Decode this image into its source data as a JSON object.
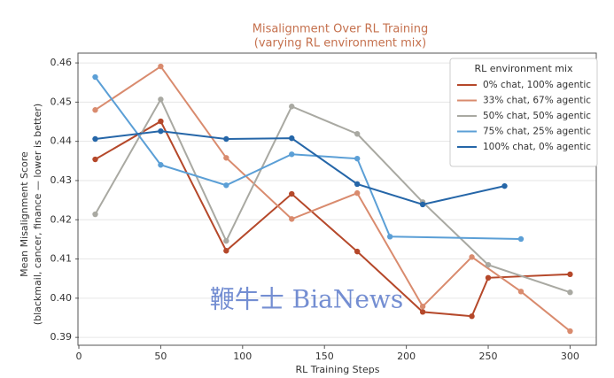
{
  "chart_data": {
    "type": "line",
    "title": [
      "Misalignment Over RL Training",
      "(varying RL environment mix)"
    ],
    "xlabel": "RL Training Steps",
    "ylabel": [
      "Mean Misalignment Score",
      "(blackmail, cancer, finance — lower is better)"
    ],
    "legend_title": "RL environment mix",
    "legend": "upper right",
    "grid": true,
    "xlim": [
      0,
      316
    ],
    "xticks": [
      0,
      50,
      100,
      150,
      200,
      250,
      300
    ],
    "ylim": [
      0.388,
      0.4625
    ],
    "yticks": [
      {
        "value": 0.39,
        "label": "0.39"
      },
      {
        "value": 0.4,
        "label": "0.40"
      },
      0.41,
      0.42,
      0.43,
      0.44,
      0.45,
      0.46
    ],
    "series": [
      {
        "name": "0% chat, 100% agentic",
        "color": "#b5482a",
        "x": [
          10,
          50,
          90,
          130,
          170,
          210,
          240,
          250,
          300
        ],
        "values": [
          0.4354,
          0.4451,
          0.4121,
          0.4266,
          0.4119,
          0.3965,
          0.3954,
          0.4052,
          0.4061
        ]
      },
      {
        "name": "33% chat, 67% agentic",
        "color": "#d98b6e",
        "x": [
          10,
          50,
          90,
          130,
          170,
          210,
          240,
          270,
          300
        ],
        "values": [
          0.448,
          0.4591,
          0.4358,
          0.4202,
          0.4268,
          0.3979,
          0.4105,
          0.4017,
          0.3916
        ]
      },
      {
        "name": "50% chat, 50% agentic",
        "color": "#a9a9a2",
        "x": [
          10,
          50,
          90,
          130,
          170,
          210,
          250,
          300
        ],
        "values": [
          0.4214,
          0.4507,
          0.4146,
          0.4489,
          0.4419,
          0.4245,
          0.4085,
          0.4015
        ]
      },
      {
        "name": "75% chat, 25% agentic",
        "color": "#5b9fd6",
        "x": [
          10,
          50,
          90,
          130,
          170,
          190,
          270
        ],
        "values": [
          0.4564,
          0.434,
          0.4288,
          0.4367,
          0.4356,
          0.4157,
          0.4151
        ]
      },
      {
        "name": "100% chat, 0% agentic",
        "color": "#2566a8",
        "x": [
          10,
          50,
          90,
          130,
          170,
          210,
          260
        ],
        "values": [
          0.4406,
          0.4426,
          0.4406,
          0.4408,
          0.4291,
          0.4239,
          0.4286
        ]
      }
    ],
    "watermark": "鞭牛士 BiaNews"
  }
}
